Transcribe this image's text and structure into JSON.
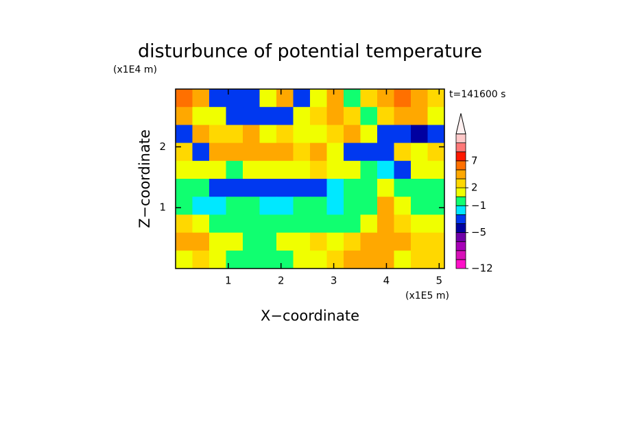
{
  "chart_data": {
    "type": "contour",
    "title": "disturbunce of potential temperature",
    "x_label": "X−coordinate",
    "y_label": "Z−coordinate",
    "x_unit": "(x1E5 m)",
    "y_unit": "(x1E4 m)",
    "annotation": "t=141600 s",
    "xlim": [
      0,
      5.1
    ],
    "ylim": [
      0,
      2.95
    ],
    "xticks": [
      1,
      2,
      3,
      4,
      5
    ],
    "yticks": [
      1,
      2
    ],
    "levels": [
      -12,
      -10,
      -8,
      -6,
      -5,
      -4,
      -2,
      -1,
      1,
      2,
      3,
      5,
      7,
      9,
      11,
      13
    ],
    "colors": [
      "#ff10c8",
      "#d810b8",
      "#a800b8",
      "#7000a8",
      "#0000a0",
      "#0038f0",
      "#00e8ff",
      "#10ff70",
      "#f0ff00",
      "#ffd800",
      "#ffa800",
      "#ff7000",
      "#ff1800",
      "#ff7878",
      "#ffc8c8"
    ],
    "extend_color": "#fff0f0",
    "colorbar_ticks": [
      {
        "value": -12,
        "label": "−12"
      },
      {
        "value": -5,
        "label": "−5"
      },
      {
        "value": -1,
        "label": "−1"
      },
      2,
      7
    ],
    "z": [
      [
        5,
        3,
        -4,
        -4,
        -3,
        1,
        3,
        -3,
        1,
        3,
        0,
        2,
        4,
        5,
        3,
        2
      ],
      [
        3,
        1,
        1,
        -3,
        -4,
        -4,
        -3,
        1,
        2,
        3,
        2,
        0,
        2,
        4,
        3,
        1
      ],
      [
        -4,
        3,
        2,
        2,
        3,
        1,
        2,
        1,
        1,
        2,
        3,
        1,
        -4,
        -4,
        -5,
        -4
      ],
      [
        2,
        -4,
        3,
        4,
        4,
        4,
        3,
        2,
        3,
        1,
        -4,
        -4,
        -3,
        2,
        1,
        2
      ],
      [
        1,
        1,
        1,
        0,
        1,
        1,
        1,
        1,
        2,
        1,
        1,
        0,
        -2,
        -4,
        1,
        1
      ],
      [
        0,
        -1,
        -4,
        -3,
        -4,
        -3,
        -4,
        -3,
        -3,
        -2,
        -1,
        0,
        1,
        -1,
        0,
        0
      ],
      [
        -1,
        -2,
        -2,
        -1,
        -1,
        -2,
        -2,
        -1,
        -1,
        -2,
        -1,
        -1,
        3,
        1,
        -1,
        0
      ],
      [
        2,
        1,
        -1,
        -1,
        -1,
        -1,
        -1,
        -1,
        0,
        0,
        0,
        1,
        3,
        2,
        1,
        1
      ],
      [
        3,
        3,
        1,
        1,
        0,
        0,
        1,
        1,
        2,
        1,
        2,
        3,
        4,
        3,
        2,
        2
      ],
      [
        1,
        2,
        1,
        0,
        0,
        0,
        0,
        1,
        1,
        2,
        3,
        4,
        3,
        1,
        2,
        2
      ]
    ]
  }
}
